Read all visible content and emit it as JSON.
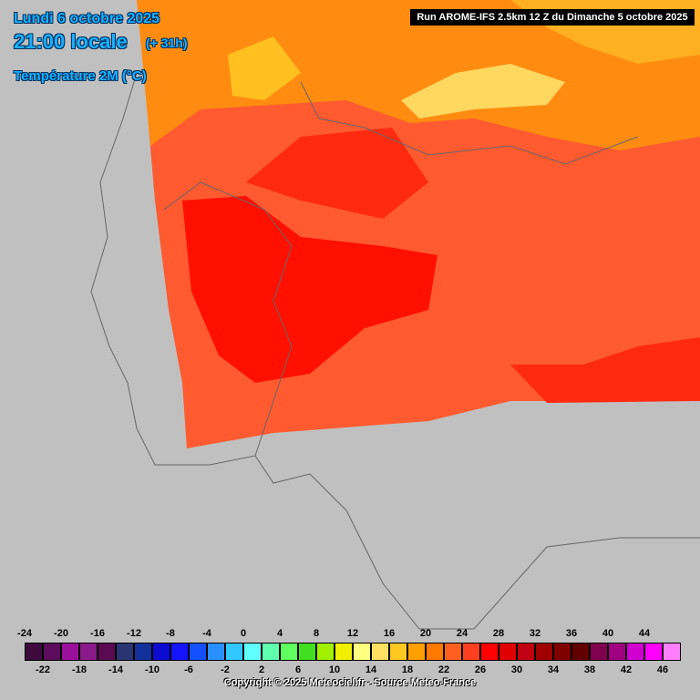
{
  "header": {
    "date": "Lundi 6 octobre 2025",
    "time": "21:00 locale",
    "lead": "(+ 31h)",
    "variable": "Température 2M (°C)",
    "run": "Run AROME-IFS 2.5km 12 Z du Dimanche 5 octobre 2025"
  },
  "legend": {
    "labels": [
      -24,
      -22,
      -20,
      -18,
      -16,
      -14,
      -12,
      -10,
      -8,
      -6,
      -4,
      -2,
      0,
      2,
      4,
      6,
      8,
      10,
      12,
      14,
      16,
      18,
      20,
      22,
      24,
      26,
      28,
      30,
      32,
      34,
      36,
      38,
      40,
      42,
      44,
      46
    ],
    "colors": [
      "#3c0a3c",
      "#5c0c5c",
      "#9a109a",
      "#8a1a8a",
      "#5a0a50",
      "#2a3470",
      "#12309a",
      "#0a0ad0",
      "#1414ff",
      "#1450ff",
      "#2a90ff",
      "#30c8ff",
      "#60ffff",
      "#60ffb0",
      "#60ff60",
      "#40e020",
      "#a0f000",
      "#f0f000",
      "#ffff80",
      "#ffe060",
      "#ffc820",
      "#ffa000",
      "#ff7800",
      "#ff6020",
      "#ff4020",
      "#ff0000",
      "#e00000",
      "#c00010",
      "#a00000",
      "#800000",
      "#600000",
      "#800050",
      "#a00080",
      "#d000d0",
      "#ff00ff",
      "#ff80ff"
    ]
  },
  "footer": {
    "copyright": "Copyright © 2025 Meteociel.fr - Source Meteo-France"
  }
}
